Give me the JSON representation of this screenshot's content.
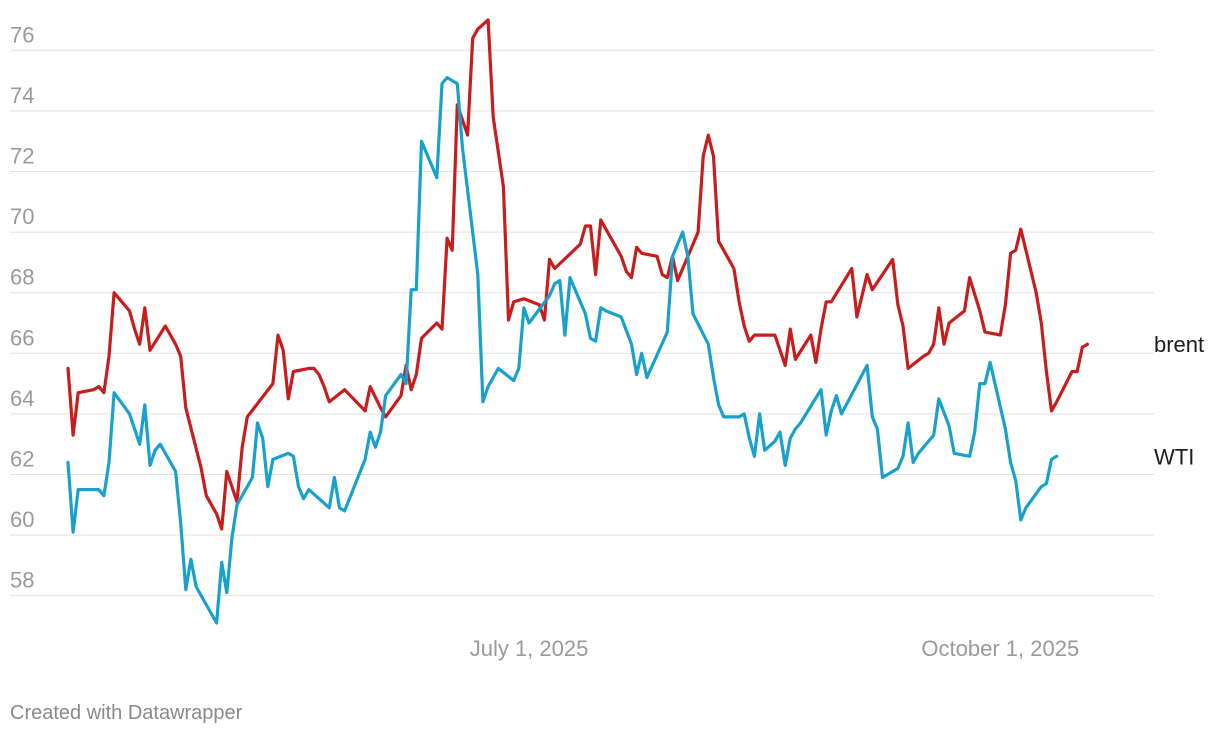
{
  "footer": "Created with Datawrapper",
  "chart_data": {
    "type": "line",
    "title": "",
    "xlabel": "",
    "ylabel": "",
    "ylim": [
      57,
      77
    ],
    "y_ticks": [
      58,
      60,
      62,
      64,
      66,
      68,
      70,
      72,
      74,
      76
    ],
    "x_range": [
      "2025-04-02",
      "2025-10-31"
    ],
    "x_ticks": [
      {
        "date": "2025-07-01",
        "label": "July 1, 2025"
      },
      {
        "date": "2025-10-01",
        "label": "October 1, 2025"
      }
    ],
    "grid": true,
    "legend": "inline-right",
    "series": [
      {
        "name": "brent",
        "color": "#c71e1d",
        "points": [
          [
            "2025-04-02",
            65.5
          ],
          [
            "2025-04-03",
            63.3
          ],
          [
            "2025-04-04",
            64.7
          ],
          [
            "2025-04-07",
            64.8
          ],
          [
            "2025-04-08",
            64.9
          ],
          [
            "2025-04-09",
            64.7
          ],
          [
            "2025-04-10",
            65.9
          ],
          [
            "2025-04-11",
            68.0
          ],
          [
            "2025-04-14",
            67.4
          ],
          [
            "2025-04-15",
            66.8
          ],
          [
            "2025-04-16",
            66.3
          ],
          [
            "2025-04-17",
            67.5
          ],
          [
            "2025-04-18",
            66.1
          ],
          [
            "2025-04-21",
            66.9
          ],
          [
            "2025-04-23",
            66.3
          ],
          [
            "2025-04-24",
            65.9
          ],
          [
            "2025-04-25",
            64.2
          ],
          [
            "2025-04-28",
            62.2
          ],
          [
            "2025-04-29",
            61.3
          ],
          [
            "2025-05-01",
            60.7
          ],
          [
            "2025-05-02",
            60.2
          ],
          [
            "2025-05-03",
            62.1
          ],
          [
            "2025-05-05",
            61.1
          ],
          [
            "2025-05-06",
            62.9
          ],
          [
            "2025-05-07",
            63.9
          ],
          [
            "2025-05-12",
            65.0
          ],
          [
            "2025-05-13",
            66.6
          ],
          [
            "2025-05-14",
            66.1
          ],
          [
            "2025-05-15",
            64.5
          ],
          [
            "2025-05-16",
            65.4
          ],
          [
            "2025-05-19",
            65.5
          ],
          [
            "2025-05-20",
            65.5
          ],
          [
            "2025-05-21",
            65.3
          ],
          [
            "2025-05-22",
            64.9
          ],
          [
            "2025-05-23",
            64.4
          ],
          [
            "2025-05-26",
            64.8
          ],
          [
            "2025-05-30",
            64.1
          ],
          [
            "2025-05-31",
            64.9
          ],
          [
            "2025-06-02",
            64.2
          ],
          [
            "2025-06-03",
            63.9
          ],
          [
            "2025-06-06",
            64.6
          ],
          [
            "2025-06-07",
            65.6
          ],
          [
            "2025-06-08",
            64.8
          ],
          [
            "2025-06-09",
            65.3
          ],
          [
            "2025-06-10",
            66.5
          ],
          [
            "2025-06-13",
            67.0
          ],
          [
            "2025-06-14",
            66.8
          ],
          [
            "2025-06-15",
            69.8
          ],
          [
            "2025-06-16",
            69.4
          ],
          [
            "2025-06-17",
            74.2
          ],
          [
            "2025-06-19",
            73.2
          ],
          [
            "2025-06-20",
            76.4
          ],
          [
            "2025-06-21",
            76.7
          ],
          [
            "2025-06-23",
            77.0
          ],
          [
            "2025-06-24",
            73.8
          ],
          [
            "2025-06-26",
            71.5
          ],
          [
            "2025-06-27",
            67.1
          ],
          [
            "2025-06-28",
            67.7
          ],
          [
            "2025-06-30",
            67.8
          ],
          [
            "2025-07-03",
            67.6
          ],
          [
            "2025-07-04",
            67.1
          ],
          [
            "2025-07-05",
            69.1
          ],
          [
            "2025-07-06",
            68.8
          ],
          [
            "2025-07-11",
            69.6
          ],
          [
            "2025-07-12",
            70.2
          ],
          [
            "2025-07-13",
            70.2
          ],
          [
            "2025-07-14",
            68.6
          ],
          [
            "2025-07-15",
            70.4
          ],
          [
            "2025-07-19",
            69.2
          ],
          [
            "2025-07-20",
            68.7
          ],
          [
            "2025-07-21",
            68.5
          ],
          [
            "2025-07-22",
            69.5
          ],
          [
            "2025-07-23",
            69.3
          ],
          [
            "2025-07-26",
            69.2
          ],
          [
            "2025-07-27",
            68.6
          ],
          [
            "2025-07-28",
            68.5
          ],
          [
            "2025-07-29",
            69.2
          ],
          [
            "2025-07-30",
            68.4
          ],
          [
            "2025-08-03",
            70.0
          ],
          [
            "2025-08-04",
            72.5
          ],
          [
            "2025-08-05",
            73.2
          ],
          [
            "2025-08-06",
            72.5
          ],
          [
            "2025-08-07",
            69.7
          ],
          [
            "2025-08-10",
            68.8
          ],
          [
            "2025-08-11",
            67.7
          ],
          [
            "2025-08-12",
            66.9
          ],
          [
            "2025-08-13",
            66.4
          ],
          [
            "2025-08-14",
            66.6
          ],
          [
            "2025-08-17",
            66.6
          ],
          [
            "2025-08-18",
            66.6
          ],
          [
            "2025-08-20",
            65.6
          ],
          [
            "2025-08-21",
            66.8
          ],
          [
            "2025-08-22",
            65.8
          ],
          [
            "2025-08-25",
            66.6
          ],
          [
            "2025-08-26",
            65.7
          ],
          [
            "2025-08-27",
            66.8
          ],
          [
            "2025-08-28",
            67.7
          ],
          [
            "2025-08-29",
            67.7
          ],
          [
            "2025-09-02",
            68.8
          ],
          [
            "2025-09-03",
            67.2
          ],
          [
            "2025-09-04",
            67.9
          ],
          [
            "2025-09-05",
            68.6
          ],
          [
            "2025-09-06",
            68.1
          ],
          [
            "2025-09-10",
            69.1
          ],
          [
            "2025-09-11",
            67.6
          ],
          [
            "2025-09-12",
            66.9
          ],
          [
            "2025-09-13",
            65.5
          ],
          [
            "2025-09-16",
            65.9
          ],
          [
            "2025-09-17",
            66.0
          ],
          [
            "2025-09-18",
            66.3
          ],
          [
            "2025-09-19",
            67.5
          ],
          [
            "2025-09-20",
            66.3
          ],
          [
            "2025-09-21",
            67.0
          ],
          [
            "2025-09-24",
            67.4
          ],
          [
            "2025-09-25",
            68.5
          ],
          [
            "2025-09-27",
            67.4
          ],
          [
            "2025-09-28",
            66.7
          ],
          [
            "2025-10-01",
            66.6
          ],
          [
            "2025-10-02",
            67.6
          ],
          [
            "2025-10-03",
            69.3
          ],
          [
            "2025-10-04",
            69.4
          ],
          [
            "2025-10-05",
            70.1
          ],
          [
            "2025-10-08",
            68.0
          ],
          [
            "2025-10-09",
            67.0
          ],
          [
            "2025-10-10",
            65.4
          ],
          [
            "2025-10-11",
            64.1
          ],
          [
            "2025-10-12",
            64.4
          ],
          [
            "2025-10-15",
            65.4
          ],
          [
            "2025-10-16",
            65.4
          ],
          [
            "2025-10-17",
            66.2
          ],
          [
            "2025-10-18",
            66.3
          ]
        ]
      },
      {
        "name": "WTI",
        "color": "#18a1cd",
        "points": [
          [
            "2025-04-02",
            62.4
          ],
          [
            "2025-04-03",
            60.1
          ],
          [
            "2025-04-04",
            61.5
          ],
          [
            "2025-04-07",
            61.5
          ],
          [
            "2025-04-08",
            61.5
          ],
          [
            "2025-04-09",
            61.3
          ],
          [
            "2025-04-10",
            62.4
          ],
          [
            "2025-04-11",
            64.7
          ],
          [
            "2025-04-14",
            64.0
          ],
          [
            "2025-04-15",
            63.5
          ],
          [
            "2025-04-16",
            63.0
          ],
          [
            "2025-04-17",
            64.3
          ],
          [
            "2025-04-18",
            62.3
          ],
          [
            "2025-04-19",
            62.8
          ],
          [
            "2025-04-20",
            63.0
          ],
          [
            "2025-04-23",
            62.1
          ],
          [
            "2025-04-24",
            60.4
          ],
          [
            "2025-04-25",
            58.2
          ],
          [
            "2025-04-26",
            59.2
          ],
          [
            "2025-04-27",
            58.3
          ],
          [
            "2025-05-01",
            57.1
          ],
          [
            "2025-05-02",
            59.1
          ],
          [
            "2025-05-03",
            58.1
          ],
          [
            "2025-05-04",
            59.9
          ],
          [
            "2025-05-05",
            61.0
          ],
          [
            "2025-05-08",
            61.9
          ],
          [
            "2025-05-09",
            63.7
          ],
          [
            "2025-05-10",
            63.2
          ],
          [
            "2025-05-11",
            61.6
          ],
          [
            "2025-05-12",
            62.5
          ],
          [
            "2025-05-15",
            62.7
          ],
          [
            "2025-05-16",
            62.6
          ],
          [
            "2025-05-17",
            61.6
          ],
          [
            "2025-05-18",
            61.2
          ],
          [
            "2025-05-19",
            61.5
          ],
          [
            "2025-05-23",
            60.9
          ],
          [
            "2025-05-24",
            61.9
          ],
          [
            "2025-05-25",
            60.9
          ],
          [
            "2025-05-26",
            60.8
          ],
          [
            "2025-05-30",
            62.5
          ],
          [
            "2025-05-31",
            63.4
          ],
          [
            "2025-06-01",
            62.9
          ],
          [
            "2025-06-02",
            63.4
          ],
          [
            "2025-06-03",
            64.6
          ],
          [
            "2025-06-06",
            65.3
          ],
          [
            "2025-06-07",
            65.0
          ],
          [
            "2025-06-08",
            68.1
          ],
          [
            "2025-06-09",
            68.1
          ],
          [
            "2025-06-10",
            73.0
          ],
          [
            "2025-06-13",
            71.8
          ],
          [
            "2025-06-14",
            74.9
          ],
          [
            "2025-06-15",
            75.1
          ],
          [
            "2025-06-17",
            74.9
          ],
          [
            "2025-06-18",
            72.8
          ],
          [
            "2025-06-21",
            68.6
          ],
          [
            "2025-06-22",
            64.4
          ],
          [
            "2025-06-23",
            64.9
          ],
          [
            "2025-06-25",
            65.5
          ],
          [
            "2025-06-28",
            65.1
          ],
          [
            "2025-06-29",
            65.5
          ],
          [
            "2025-06-30",
            67.5
          ],
          [
            "2025-07-01",
            67.0
          ],
          [
            "2025-07-05",
            67.9
          ],
          [
            "2025-07-06",
            68.3
          ],
          [
            "2025-07-07",
            68.4
          ],
          [
            "2025-07-08",
            66.6
          ],
          [
            "2025-07-09",
            68.5
          ],
          [
            "2025-07-12",
            67.3
          ],
          [
            "2025-07-13",
            66.5
          ],
          [
            "2025-07-14",
            66.4
          ],
          [
            "2025-07-15",
            67.5
          ],
          [
            "2025-07-16",
            67.4
          ],
          [
            "2025-07-19",
            67.2
          ],
          [
            "2025-07-21",
            66.3
          ],
          [
            "2025-07-22",
            65.3
          ],
          [
            "2025-07-23",
            66.0
          ],
          [
            "2025-07-24",
            65.2
          ],
          [
            "2025-07-28",
            66.7
          ],
          [
            "2025-07-29",
            69.2
          ],
          [
            "2025-07-31",
            70.0
          ],
          [
            "2025-08-01",
            69.2
          ],
          [
            "2025-08-02",
            67.3
          ],
          [
            "2025-08-05",
            66.3
          ],
          [
            "2025-08-06",
            65.2
          ],
          [
            "2025-08-07",
            64.3
          ],
          [
            "2025-08-08",
            63.9
          ],
          [
            "2025-08-11",
            63.9
          ],
          [
            "2025-08-12",
            64.0
          ],
          [
            "2025-08-13",
            63.2
          ],
          [
            "2025-08-14",
            62.6
          ],
          [
            "2025-08-15",
            64.0
          ],
          [
            "2025-08-16",
            62.8
          ],
          [
            "2025-08-18",
            63.1
          ],
          [
            "2025-08-19",
            63.4
          ],
          [
            "2025-08-20",
            62.3
          ],
          [
            "2025-08-21",
            63.2
          ],
          [
            "2025-08-22",
            63.5
          ],
          [
            "2025-08-23",
            63.7
          ],
          [
            "2025-08-27",
            64.8
          ],
          [
            "2025-08-28",
            63.3
          ],
          [
            "2025-08-29",
            64.1
          ],
          [
            "2025-08-30",
            64.6
          ],
          [
            "2025-08-31",
            64.0
          ],
          [
            "2025-09-05",
            65.6
          ],
          [
            "2025-09-06",
            63.9
          ],
          [
            "2025-09-07",
            63.5
          ],
          [
            "2025-09-08",
            61.9
          ],
          [
            "2025-09-11",
            62.2
          ],
          [
            "2025-09-12",
            62.6
          ],
          [
            "2025-09-13",
            63.7
          ],
          [
            "2025-09-14",
            62.4
          ],
          [
            "2025-09-15",
            62.7
          ],
          [
            "2025-09-18",
            63.3
          ],
          [
            "2025-09-19",
            64.5
          ],
          [
            "2025-09-21",
            63.6
          ],
          [
            "2025-09-22",
            62.7
          ],
          [
            "2025-09-25",
            62.6
          ],
          [
            "2025-09-26",
            63.4
          ],
          [
            "2025-09-27",
            65.0
          ],
          [
            "2025-09-28",
            65.0
          ],
          [
            "2025-09-29",
            65.7
          ],
          [
            "2025-10-02",
            63.5
          ],
          [
            "2025-10-03",
            62.4
          ],
          [
            "2025-10-04",
            61.8
          ],
          [
            "2025-10-05",
            60.5
          ],
          [
            "2025-10-06",
            60.9
          ],
          [
            "2025-10-09",
            61.6
          ],
          [
            "2025-10-10",
            61.7
          ],
          [
            "2025-10-11",
            62.5
          ],
          [
            "2025-10-12",
            62.6
          ]
        ]
      }
    ]
  }
}
